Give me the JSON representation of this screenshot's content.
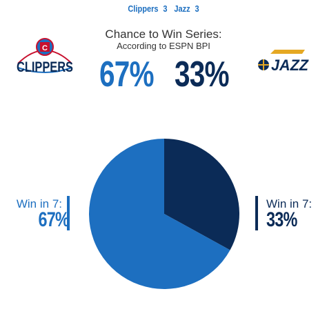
{
  "header": {
    "team1_name": "Clippers",
    "team1_wins": "3",
    "team2_name": "Jazz",
    "team2_wins": "3"
  },
  "logos": {
    "clippers_text": "CLIPPERS",
    "jazz_text": "JAZZ"
  },
  "colors": {
    "clippers": "#1d6fc0",
    "jazz": "#0b2b57"
  },
  "chart_data": {
    "type": "pie",
    "title": "Chance to Win Series:",
    "subtitle": "According to ESPN BPI",
    "categories": [
      "Jazz",
      "Clippers"
    ],
    "values": [
      33,
      67
    ],
    "display": {
      "clippers_pct": "67%",
      "jazz_pct": "33%"
    },
    "annotations": {
      "left_label": "Win in 7:",
      "left_value": "67%",
      "right_label": "Win in 7:",
      "right_value": "33%"
    }
  }
}
